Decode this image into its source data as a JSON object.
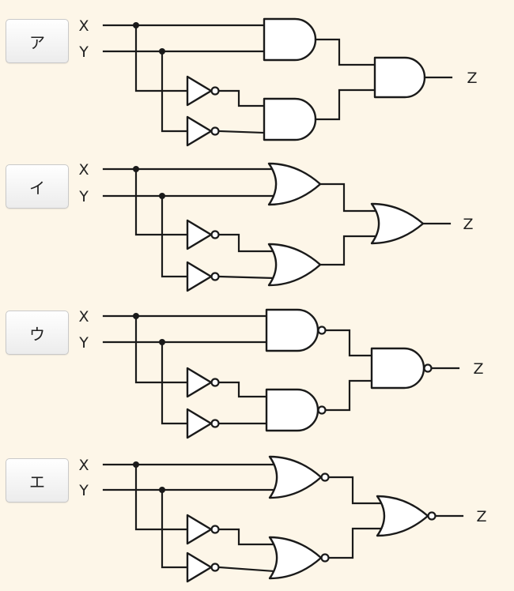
{
  "choices": [
    {
      "label": "ア",
      "x_label": "X",
      "y_label": "Y",
      "out_label": "Z",
      "first_stage": "and",
      "first_negated": false,
      "second_stage": "and",
      "second_negated": false
    },
    {
      "label": "イ",
      "x_label": "X",
      "y_label": "Y",
      "out_label": "Z",
      "first_stage": "or",
      "first_negated": false,
      "second_stage": "or",
      "second_negated": false
    },
    {
      "label": "ウ",
      "x_label": "X",
      "y_label": "Y",
      "out_label": "Z",
      "first_stage": "and",
      "first_negated": true,
      "second_stage": "and",
      "second_negated": true
    },
    {
      "label": "エ",
      "x_label": "X",
      "y_label": "Y",
      "out_label": "Z",
      "first_stage": "or",
      "first_negated": true,
      "second_stage": "or",
      "second_negated": true
    }
  ]
}
